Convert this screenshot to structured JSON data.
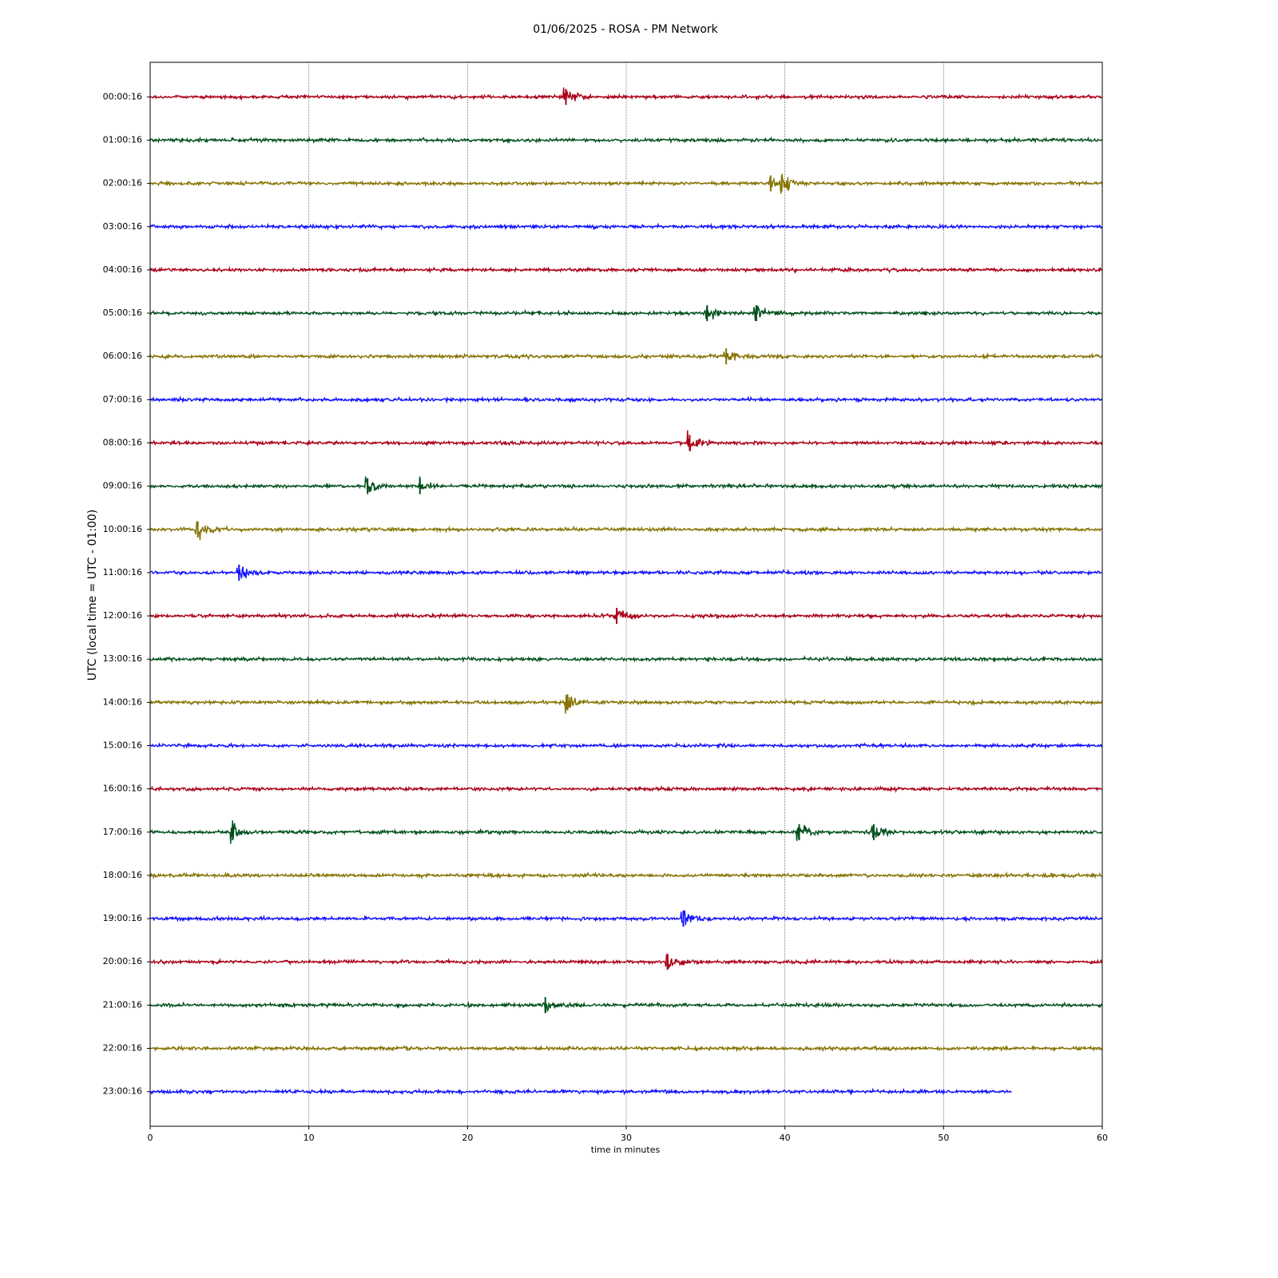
{
  "chart_data": {
    "type": "helicorder",
    "title": "01/06/2025 - ROSA - PM Network",
    "xlabel": "time in minutes",
    "ylabel": "UTC (local time = UTC - 01:00)",
    "xlim": [
      0,
      60
    ],
    "xticks": [
      0,
      10,
      20,
      30,
      40,
      50,
      60
    ],
    "grid": true,
    "series": [
      {
        "name": "00:00:16",
        "color": "#aa0018",
        "x_range": [
          0,
          60
        ],
        "events": [
          26.2
        ]
      },
      {
        "name": "01:00:16",
        "color": "#00501c",
        "x_range": [
          0,
          60
        ],
        "events": []
      },
      {
        "name": "02:00:16",
        "color": "#857200",
        "x_range": [
          0,
          60
        ],
        "events": [
          39.1,
          39.8
        ]
      },
      {
        "name": "03:00:16",
        "color": "#1010ff",
        "x_range": [
          0,
          60
        ],
        "events": []
      },
      {
        "name": "04:00:16",
        "color": "#aa0018",
        "x_range": [
          0,
          60
        ],
        "events": []
      },
      {
        "name": "05:00:16",
        "color": "#00501c",
        "x_range": [
          0,
          60
        ],
        "events": [
          35.1,
          38.2
        ]
      },
      {
        "name": "06:00:16",
        "color": "#857200",
        "x_range": [
          0,
          60
        ],
        "events": [
          36.3
        ]
      },
      {
        "name": "07:00:16",
        "color": "#1010ff",
        "x_range": [
          0,
          60
        ],
        "events": []
      },
      {
        "name": "08:00:16",
        "color": "#aa0018",
        "x_range": [
          0,
          60
        ],
        "events": [
          34.0
        ]
      },
      {
        "name": "09:00:16",
        "color": "#00501c",
        "x_range": [
          0,
          60
        ],
        "events": [
          13.7,
          17.0
        ]
      },
      {
        "name": "10:00:16",
        "color": "#857200",
        "x_range": [
          0,
          60
        ],
        "events": [
          3.0
        ]
      },
      {
        "name": "11:00:16",
        "color": "#1010ff",
        "x_range": [
          0,
          60
        ],
        "events": [
          5.6
        ]
      },
      {
        "name": "12:00:16",
        "color": "#aa0018",
        "x_range": [
          0,
          60
        ],
        "events": [
          29.4
        ]
      },
      {
        "name": "13:00:16",
        "color": "#00501c",
        "x_range": [
          0,
          60
        ],
        "events": []
      },
      {
        "name": "14:00:16",
        "color": "#857200",
        "x_range": [
          0,
          60
        ],
        "events": [
          26.3
        ]
      },
      {
        "name": "15:00:16",
        "color": "#1010ff",
        "x_range": [
          0,
          60
        ],
        "events": []
      },
      {
        "name": "16:00:16",
        "color": "#aa0018",
        "x_range": [
          0,
          60
        ],
        "events": []
      },
      {
        "name": "17:00:16",
        "color": "#00501c",
        "x_range": [
          0,
          60
        ],
        "events": [
          5.2,
          40.9,
          45.6
        ]
      },
      {
        "name": "18:00:16",
        "color": "#857200",
        "x_range": [
          0,
          60
        ],
        "events": []
      },
      {
        "name": "19:00:16",
        "color": "#1010ff",
        "x_range": [
          0,
          60
        ],
        "events": [
          33.6
        ]
      },
      {
        "name": "20:00:16",
        "color": "#aa0018",
        "x_range": [
          0,
          60
        ],
        "events": [
          32.6
        ]
      },
      {
        "name": "21:00:16",
        "color": "#00501c",
        "x_range": [
          0,
          60
        ],
        "events": [
          24.9
        ]
      },
      {
        "name": "22:00:16",
        "color": "#857200",
        "x_range": [
          0,
          60
        ],
        "events": []
      },
      {
        "name": "23:00:16",
        "color": "#1010ff",
        "x_range": [
          0,
          54.3
        ],
        "events": []
      }
    ]
  }
}
